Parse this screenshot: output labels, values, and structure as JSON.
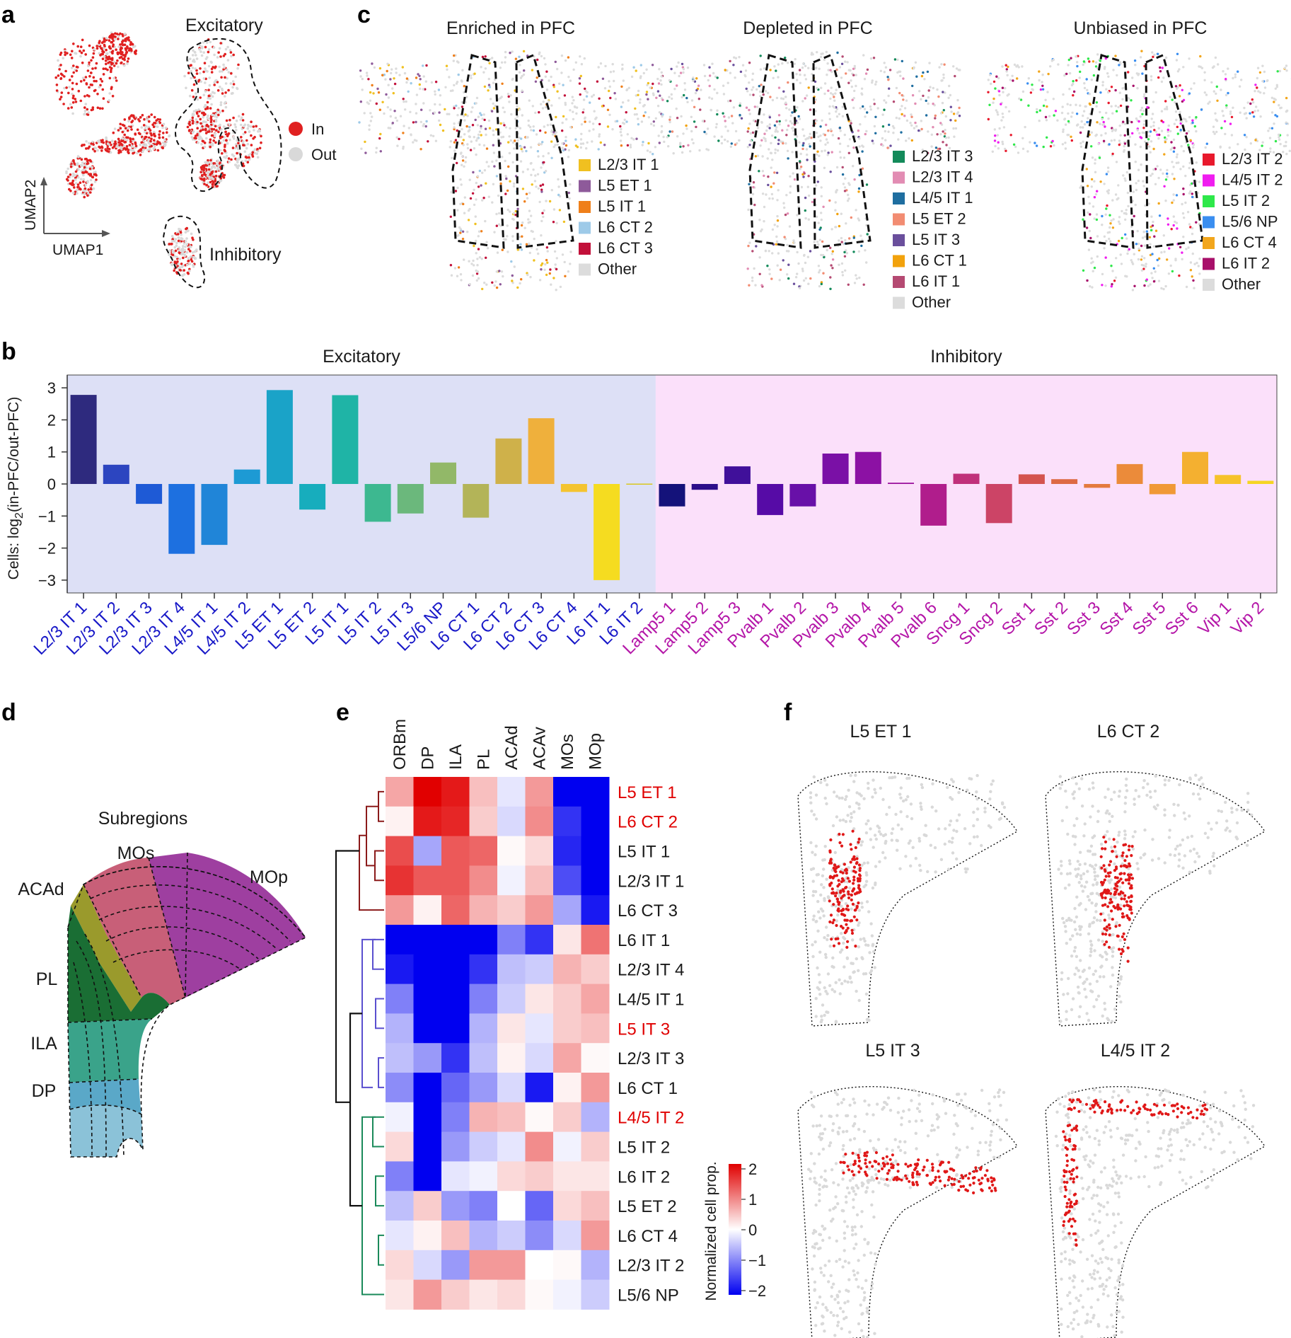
{
  "panel_labels": {
    "a": "a",
    "b": "b",
    "c": "c",
    "d": "d",
    "e": "e",
    "f": "f"
  },
  "panel_a": {
    "cluster_labels": {
      "excitatory": "Excitatory",
      "inhibitory": "Inhibitory"
    },
    "axis_x": "UMAP1",
    "axis_y": "UMAP2",
    "legend": [
      {
        "label": "In",
        "color": "#e02020"
      },
      {
        "label": "Out",
        "color": "#d9d9d9"
      }
    ]
  },
  "panel_c": {
    "maps": [
      {
        "title": "Enriched in PFC",
        "legend": [
          {
            "label": "L2/3 IT 1",
            "color": "#f0c020"
          },
          {
            "label": "L5 ET 1",
            "color": "#8e5a9a"
          },
          {
            "label": "L5 IT 1",
            "color": "#ef7f1a"
          },
          {
            "label": "L6 CT 2",
            "color": "#9ecae8"
          },
          {
            "label": "L6 CT 3",
            "color": "#c2103a"
          },
          {
            "label": "Other",
            "color": "#dcdcdc"
          }
        ]
      },
      {
        "title": "Depleted in PFC",
        "legend": [
          {
            "label": "L2/3 IT 3",
            "color": "#138a5a"
          },
          {
            "label": "L2/3 IT 4",
            "color": "#e28cb3"
          },
          {
            "label": "L4/5 IT 1",
            "color": "#1f6ea0"
          },
          {
            "label": "L5 ET 2",
            "color": "#f28c72"
          },
          {
            "label": "L5 IT 3",
            "color": "#6a4f9c"
          },
          {
            "label": "L6 CT 1",
            "color": "#f2a20c"
          },
          {
            "label": "L6 IT 1",
            "color": "#b54a72"
          },
          {
            "label": "Other",
            "color": "#dcdcdc"
          }
        ]
      },
      {
        "title": "Unbiased in PFC",
        "legend": [
          {
            "label": "L2/3 IT 2",
            "color": "#e8192c"
          },
          {
            "label": "L4/5 IT 2",
            "color": "#f01df0"
          },
          {
            "label": "L5 IT 2",
            "color": "#2ee84a"
          },
          {
            "label": "L5/6 NP",
            "color": "#3a8ef0"
          },
          {
            "label": "L6 CT 4",
            "color": "#f2a61c"
          },
          {
            "label": "L6 IT 2",
            "color": "#a8106a"
          },
          {
            "label": "Other",
            "color": "#dcdcdc"
          }
        ]
      }
    ]
  },
  "chart_data": {
    "type": "bar",
    "ylabel": "Cells: log2(in-PFC/out-PFC)",
    "ylim": [
      -3.4,
      3.4
    ],
    "yticks": [
      3,
      2,
      1,
      0,
      -1,
      -2,
      -3
    ],
    "groups": [
      {
        "name": "Excitatory",
        "background": "#dde0f6",
        "label_color": "#1818c8"
      },
      {
        "name": "Inhibitory",
        "background": "#fbe0fa",
        "label_color": "#b416a8"
      }
    ],
    "categories": [
      "L2/3 IT 1",
      "L2/3 IT 2",
      "L2/3 IT 3",
      "L2/3 IT 4",
      "L4/5 IT 1",
      "L4/5 IT 2",
      "L5 ET 1",
      "L5 ET 2",
      "L5 IT 1",
      "L5 IT 2",
      "L5 IT 3",
      "L5/6 NP",
      "L6 CT 1",
      "L6 CT 2",
      "L6 CT 3",
      "L6 CT 4",
      "L6 IT 1",
      "L6 IT 2",
      "Lamp5 1",
      "Lamp5 2",
      "Lamp5 3",
      "Pvalb 1",
      "Pvalb 2",
      "Pvalb 3",
      "Pvalb 4",
      "Pvalb 5",
      "Pvalb 6",
      "Sncg 1",
      "Sncg 2",
      "Sst 1",
      "Sst 2",
      "Sst 3",
      "Sst 4",
      "Sst 5",
      "Sst 6",
      "Vip 1",
      "Vip 2"
    ],
    "group_of": [
      0,
      0,
      0,
      0,
      0,
      0,
      0,
      0,
      0,
      0,
      0,
      0,
      0,
      0,
      0,
      0,
      0,
      0,
      1,
      1,
      1,
      1,
      1,
      1,
      1,
      1,
      1,
      1,
      1,
      1,
      1,
      1,
      1,
      1,
      1,
      1,
      1
    ],
    "values": [
      2.78,
      0.6,
      -0.62,
      -2.18,
      -1.9,
      0.45,
      2.93,
      -0.8,
      2.77,
      -1.18,
      -0.92,
      0.67,
      -1.05,
      1.42,
      2.05,
      -0.25,
      -3.0,
      0.01,
      -0.7,
      -0.18,
      0.55,
      -0.97,
      -0.7,
      0.95,
      1.0,
      0.04,
      -1.3,
      0.32,
      -1.22,
      0.3,
      0.15,
      -0.12,
      0.62,
      -0.32,
      1.0,
      0.28,
      0.1
    ],
    "colors": [
      "#2e2a7e",
      "#2c45c0",
      "#1e5ad6",
      "#1d70e0",
      "#2085d8",
      "#1d9ad4",
      "#1aa3c8",
      "#17adbd",
      "#1fb4a6",
      "#3db890",
      "#6bb87c",
      "#92b868",
      "#b3b458",
      "#cfb14a",
      "#efb03c",
      "#f4c430",
      "#f5dc20",
      "#d9c820",
      "#14127a",
      "#2c0e8a",
      "#40109a",
      "#560ba6",
      "#6810a8",
      "#7a10a6",
      "#8c11a4",
      "#9c139e",
      "#b01d8c",
      "#c0307a",
      "#cc4466",
      "#d4544f",
      "#dd6a44",
      "#e47a3e",
      "#eb8b3a",
      "#f09936",
      "#f4b030",
      "#f6c22a",
      "#f5d522"
    ]
  },
  "panel_d": {
    "title": "Subregions",
    "regions": [
      {
        "label": "MOs",
        "color": "#c85f78"
      },
      {
        "label": "MOp",
        "color": "#9e3fa0"
      },
      {
        "label": "ACAd",
        "color": "#9a9a2c"
      },
      {
        "label": "PL",
        "color": "#1a6e34"
      },
      {
        "label": "ILA",
        "color": "#3aa38a"
      },
      {
        "label": "DP",
        "color": "#5aa8c8"
      }
    ]
  },
  "panel_e": {
    "columns": [
      "ORBm",
      "DP",
      "ILA",
      "PL",
      "ACAd",
      "ACAv",
      "MOs",
      "MOp"
    ],
    "rows": [
      {
        "label": "L5 ET 1",
        "highlight": true,
        "values": [
          0.7,
          2.0,
          1.8,
          0.5,
          -0.2,
          0.8,
          -2.0,
          -2.0
        ]
      },
      {
        "label": "L6 CT 2",
        "highlight": true,
        "values": [
          0.1,
          1.8,
          1.7,
          0.4,
          -0.3,
          0.9,
          -1.6,
          -2.0
        ]
      },
      {
        "label": "L5 IT 1",
        "highlight": false,
        "values": [
          1.4,
          -0.7,
          1.3,
          1.2,
          0.05,
          0.3,
          -1.7,
          -2.0
        ]
      },
      {
        "label": "L2/3 IT 1",
        "highlight": false,
        "values": [
          1.6,
          1.3,
          1.3,
          0.9,
          -0.1,
          0.5,
          -1.4,
          -2.0
        ]
      },
      {
        "label": "L6 CT 3",
        "highlight": false,
        "values": [
          0.8,
          0.1,
          1.2,
          0.6,
          0.4,
          0.8,
          -0.7,
          -1.8
        ]
      },
      {
        "label": "L6 IT 1",
        "highlight": false,
        "values": [
          -2.0,
          -2.0,
          -2.0,
          -2.0,
          -1.0,
          -1.6,
          0.2,
          1.1
        ]
      },
      {
        "label": "L2/3 IT 4",
        "highlight": false,
        "values": [
          -1.8,
          -2.0,
          -2.0,
          -1.6,
          -0.5,
          -0.4,
          0.6,
          0.4
        ]
      },
      {
        "label": "L4/5 IT 1",
        "highlight": false,
        "values": [
          -1.0,
          -2.0,
          -2.0,
          -1.0,
          -0.4,
          0.2,
          0.4,
          0.7
        ]
      },
      {
        "label": "L5 IT 3",
        "highlight": true,
        "values": [
          -0.6,
          -2.0,
          -2.0,
          -0.6,
          0.2,
          -0.2,
          0.4,
          0.5
        ]
      },
      {
        "label": "L2/3 IT 3",
        "highlight": false,
        "values": [
          -0.5,
          -0.8,
          -1.6,
          -0.5,
          0.1,
          -0.3,
          0.7,
          0.05
        ]
      },
      {
        "label": "L6 CT 1",
        "highlight": false,
        "values": [
          -0.9,
          -2.0,
          -1.2,
          -0.8,
          -0.3,
          -1.8,
          0.1,
          0.8
        ]
      },
      {
        "label": "L4/5 IT 2",
        "highlight": true,
        "values": [
          -0.1,
          -2.0,
          -1.0,
          0.6,
          0.5,
          0.05,
          0.4,
          -0.6
        ]
      },
      {
        "label": "L5 IT 2",
        "highlight": false,
        "values": [
          0.3,
          -2.0,
          -0.8,
          -0.4,
          -0.2,
          0.9,
          -0.1,
          0.4
        ]
      },
      {
        "label": "L6 IT 2",
        "highlight": false,
        "values": [
          -1.0,
          -2.0,
          -0.2,
          -0.1,
          0.3,
          0.4,
          0.2,
          0.2
        ]
      },
      {
        "label": "L5 ET 2",
        "highlight": false,
        "values": [
          -0.5,
          0.4,
          -0.8,
          -1.0,
          0.0,
          -1.2,
          0.3,
          0.5
        ]
      },
      {
        "label": "L6 CT 4",
        "highlight": false,
        "values": [
          -0.2,
          0.1,
          0.5,
          -0.6,
          -0.4,
          -0.9,
          -0.3,
          0.8
        ]
      },
      {
        "label": "L2/3 IT 2",
        "highlight": false,
        "values": [
          0.3,
          -0.3,
          -0.8,
          0.8,
          0.8,
          0.0,
          0.05,
          -0.6
        ]
      },
      {
        "label": "L5/6 NP",
        "highlight": false,
        "values": [
          0.2,
          0.8,
          0.4,
          0.2,
          0.3,
          0.05,
          -0.1,
          -0.4
        ]
      }
    ],
    "colorbar": {
      "label": "Normalized cell prop.",
      "ticks": [
        "2",
        "1",
        "0",
        "−1",
        "−2"
      ],
      "min": -2,
      "max": 2
    },
    "dendrogram_colors": [
      "#8b1a1a",
      "#5a4fcf",
      "#1a8a5a",
      "#111111"
    ]
  },
  "panel_f": {
    "maps": [
      {
        "title": "L5 ET 1"
      },
      {
        "title": "L6 CT 2"
      },
      {
        "title": "L5 IT 3"
      },
      {
        "title": "L4/5 IT 2"
      }
    ]
  }
}
